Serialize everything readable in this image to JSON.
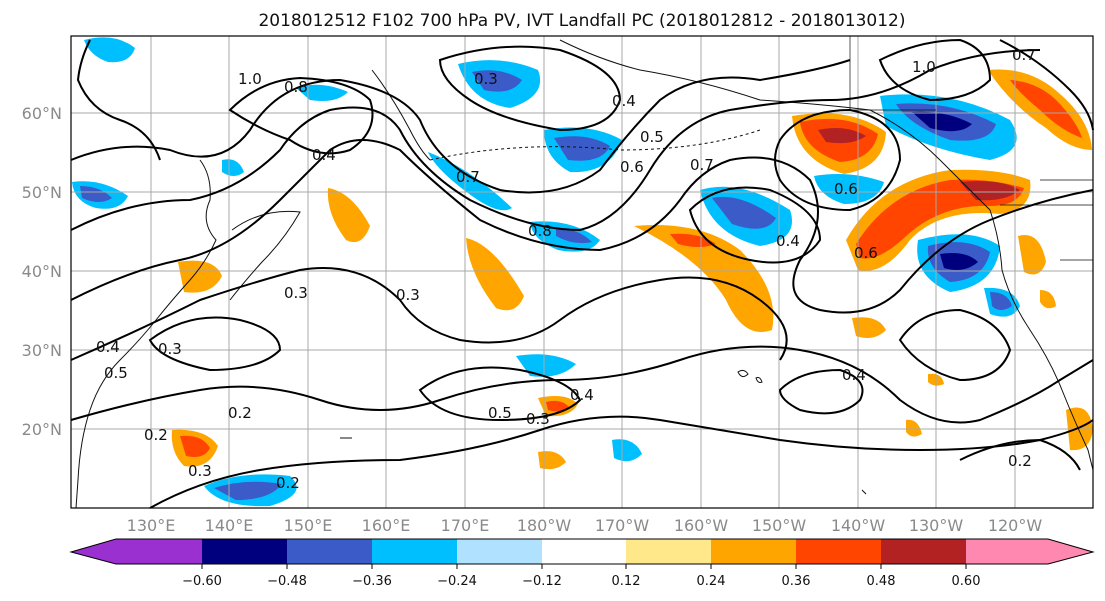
{
  "title": "2018012512 F102 700 hPa PV, IVT Landfall PC (2018012812 - 2018013012)",
  "map": {
    "lat_labels": [
      "60°N",
      "50°N",
      "40°N",
      "30°N",
      "20°N"
    ],
    "lon_labels": [
      "130°E",
      "140°E",
      "150°E",
      "160°E",
      "170°E",
      "180°W",
      "170°W",
      "160°W",
      "150°W",
      "140°W",
      "130°W",
      "120°W"
    ],
    "contour_labels": [
      "1.0",
      "0.8",
      "0.4",
      "0.3",
      "0.7",
      "0.5",
      "0.6",
      "0.7",
      "0.4",
      "0.6",
      "1.0",
      "0.7",
      "0.8",
      "0.3",
      "0.3",
      "0.4",
      "0.5",
      "0.3",
      "0.2",
      "0.2",
      "0.5",
      "0.3",
      "0.4",
      "0.4",
      "0.2",
      "0.2",
      "0.3",
      "0.6",
      "0.4"
    ]
  },
  "colorbar": {
    "ticks": [
      "−0.60",
      "−0.48",
      "−0.36",
      "−0.24",
      "−0.12",
      "0.12",
      "0.24",
      "0.36",
      "0.48",
      "0.60"
    ],
    "colors": [
      "#9b30d0",
      "#00007f",
      "#3a5bc8",
      "#00bfff",
      "#b0e2ff",
      "#ffffff",
      "#ffe88a",
      "#ffa500",
      "#ff4500",
      "#b22222",
      "#ff88b0"
    ]
  }
}
